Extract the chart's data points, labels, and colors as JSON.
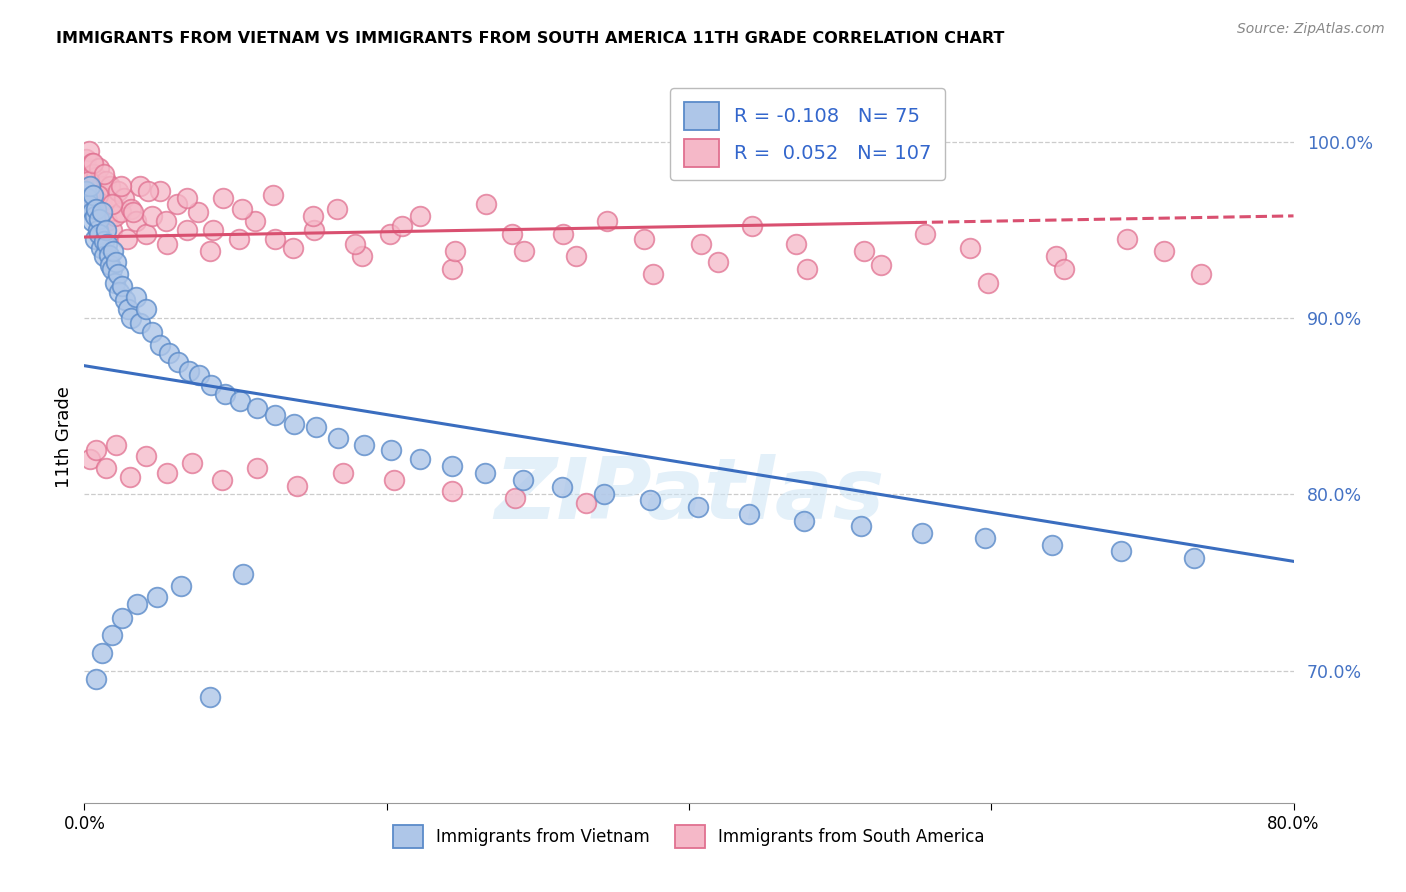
{
  "title": "IMMIGRANTS FROM VIETNAM VS IMMIGRANTS FROM SOUTH AMERICA 11TH GRADE CORRELATION CHART",
  "source": "Source: ZipAtlas.com",
  "ylabel": "11th Grade",
  "yticks": [
    {
      "label": "100.0%",
      "value": 1.0
    },
    {
      "label": "90.0%",
      "value": 0.9
    },
    {
      "label": "80.0%",
      "value": 0.8
    },
    {
      "label": "70.0%",
      "value": 0.7
    }
  ],
  "legend_blue_r": "-0.108",
  "legend_blue_n": "75",
  "legend_pink_r": "0.052",
  "legend_pink_n": "107",
  "blue_fill": "#aec6e8",
  "blue_edge": "#5b8bc9",
  "pink_fill": "#f5b8c8",
  "pink_edge": "#e07090",
  "blue_line_color": "#3a6dbf",
  "pink_line_color": "#d95070",
  "watermark": "ZIPatlas",
  "xmin": 0.0,
  "xmax": 0.8,
  "ymin": 0.625,
  "ymax": 1.04,
  "blue_trend_x0": 0.0,
  "blue_trend_y0": 0.873,
  "blue_trend_x1": 0.8,
  "blue_trend_y1": 0.762,
  "pink_trend_x0": 0.0,
  "pink_trend_y0": 0.946,
  "pink_trend_x1": 0.8,
  "pink_trend_y1": 0.958,
  "blue_points_x": [
    0.001,
    0.002,
    0.003,
    0.004,
    0.005,
    0.005,
    0.006,
    0.007,
    0.007,
    0.008,
    0.009,
    0.01,
    0.01,
    0.011,
    0.012,
    0.013,
    0.013,
    0.014,
    0.015,
    0.016,
    0.017,
    0.018,
    0.019,
    0.02,
    0.021,
    0.022,
    0.023,
    0.025,
    0.027,
    0.029,
    0.031,
    0.034,
    0.037,
    0.041,
    0.045,
    0.05,
    0.056,
    0.062,
    0.069,
    0.076,
    0.084,
    0.093,
    0.103,
    0.114,
    0.126,
    0.139,
    0.153,
    0.168,
    0.185,
    0.203,
    0.222,
    0.243,
    0.265,
    0.29,
    0.316,
    0.344,
    0.374,
    0.406,
    0.44,
    0.476,
    0.514,
    0.554,
    0.596,
    0.64,
    0.686,
    0.734,
    0.008,
    0.012,
    0.018,
    0.025,
    0.035,
    0.048,
    0.064,
    0.083,
    0.105
  ],
  "blue_points_y": [
    0.972,
    0.968,
    0.964,
    0.975,
    0.96,
    0.955,
    0.97,
    0.958,
    0.945,
    0.962,
    0.95,
    0.956,
    0.948,
    0.94,
    0.96,
    0.944,
    0.935,
    0.95,
    0.942,
    0.936,
    0.93,
    0.928,
    0.938,
    0.92,
    0.932,
    0.925,
    0.915,
    0.918,
    0.91,
    0.905,
    0.9,
    0.912,
    0.897,
    0.905,
    0.892,
    0.885,
    0.88,
    0.875,
    0.87,
    0.868,
    0.862,
    0.857,
    0.853,
    0.849,
    0.845,
    0.84,
    0.838,
    0.832,
    0.828,
    0.825,
    0.82,
    0.816,
    0.812,
    0.808,
    0.804,
    0.8,
    0.797,
    0.793,
    0.789,
    0.785,
    0.782,
    0.778,
    0.775,
    0.771,
    0.768,
    0.764,
    0.695,
    0.71,
    0.72,
    0.73,
    0.738,
    0.742,
    0.748,
    0.685,
    0.755
  ],
  "pink_points_x": [
    0.001,
    0.002,
    0.002,
    0.003,
    0.004,
    0.004,
    0.005,
    0.005,
    0.006,
    0.007,
    0.007,
    0.008,
    0.009,
    0.01,
    0.01,
    0.011,
    0.012,
    0.013,
    0.014,
    0.015,
    0.016,
    0.017,
    0.018,
    0.019,
    0.02,
    0.022,
    0.024,
    0.026,
    0.028,
    0.031,
    0.034,
    0.037,
    0.041,
    0.045,
    0.05,
    0.055,
    0.061,
    0.068,
    0.075,
    0.083,
    0.092,
    0.102,
    0.113,
    0.125,
    0.138,
    0.152,
    0.167,
    0.184,
    0.202,
    0.222,
    0.243,
    0.266,
    0.291,
    0.317,
    0.346,
    0.376,
    0.408,
    0.442,
    0.478,
    0.516,
    0.556,
    0.598,
    0.643,
    0.69,
    0.739,
    0.003,
    0.006,
    0.009,
    0.013,
    0.018,
    0.024,
    0.032,
    0.042,
    0.054,
    0.068,
    0.085,
    0.104,
    0.126,
    0.151,
    0.179,
    0.21,
    0.245,
    0.283,
    0.325,
    0.37,
    0.419,
    0.471,
    0.527,
    0.586,
    0.648,
    0.714,
    0.004,
    0.008,
    0.014,
    0.021,
    0.03,
    0.041,
    0.055,
    0.071,
    0.091,
    0.114,
    0.141,
    0.171,
    0.205,
    0.243,
    0.285,
    0.332
  ],
  "pink_points_y": [
    0.99,
    0.985,
    0.98,
    0.995,
    0.978,
    0.972,
    0.988,
    0.968,
    0.982,
    0.975,
    0.965,
    0.98,
    0.972,
    0.985,
    0.96,
    0.975,
    0.968,
    0.962,
    0.978,
    0.955,
    0.968,
    0.975,
    0.95,
    0.965,
    0.958,
    0.972,
    0.96,
    0.968,
    0.945,
    0.962,
    0.955,
    0.975,
    0.948,
    0.958,
    0.972,
    0.942,
    0.965,
    0.95,
    0.96,
    0.938,
    0.968,
    0.945,
    0.955,
    0.97,
    0.94,
    0.95,
    0.962,
    0.935,
    0.948,
    0.958,
    0.928,
    0.965,
    0.938,
    0.948,
    0.955,
    0.925,
    0.942,
    0.952,
    0.928,
    0.938,
    0.948,
    0.92,
    0.935,
    0.945,
    0.925,
    0.978,
    0.988,
    0.97,
    0.982,
    0.965,
    0.975,
    0.96,
    0.972,
    0.955,
    0.968,
    0.95,
    0.962,
    0.945,
    0.958,
    0.942,
    0.952,
    0.938,
    0.948,
    0.935,
    0.945,
    0.932,
    0.942,
    0.93,
    0.94,
    0.928,
    0.938,
    0.82,
    0.825,
    0.815,
    0.828,
    0.81,
    0.822,
    0.812,
    0.818,
    0.808,
    0.815,
    0.805,
    0.812,
    0.808,
    0.802,
    0.798,
    0.795
  ]
}
